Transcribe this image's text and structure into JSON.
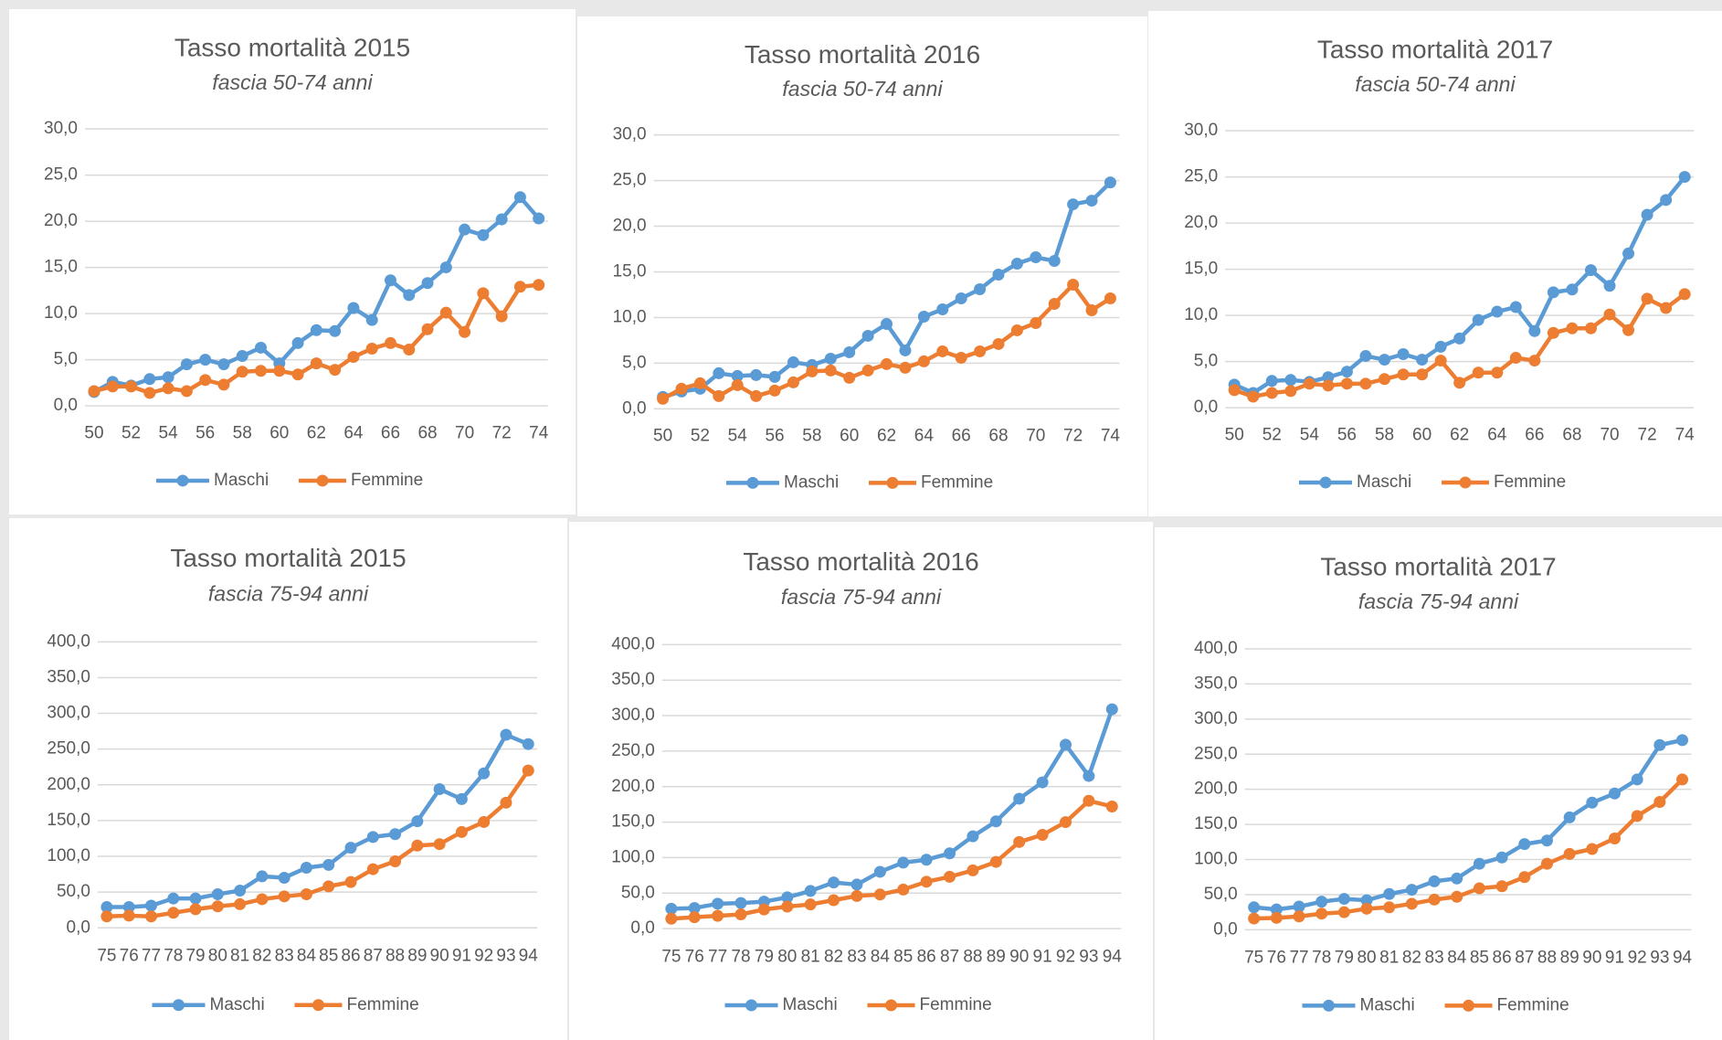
{
  "chart_data": [
    {
      "type": "line",
      "title": "Tasso mortalità 2015",
      "subtitle": "fascia 50-74 anni",
      "x": [
        50,
        51,
        52,
        53,
        54,
        55,
        56,
        57,
        58,
        59,
        60,
        61,
        62,
        63,
        64,
        65,
        66,
        67,
        68,
        69,
        70,
        71,
        72,
        73,
        74
      ],
      "xlim": [
        50,
        74
      ],
      "xticks": [
        50,
        52,
        54,
        56,
        58,
        60,
        62,
        64,
        66,
        68,
        70,
        72,
        74
      ],
      "ylim": [
        0,
        30
      ],
      "yticks": [
        {
          "value": 0,
          "label": "0,0"
        },
        {
          "value": 5,
          "label": "5,0"
        },
        {
          "value": 10,
          "label": "10,0"
        },
        {
          "value": 15,
          "label": "15,0"
        },
        {
          "value": 20,
          "label": "20,0"
        },
        {
          "value": 25,
          "label": "25,0"
        },
        {
          "value": 30,
          "label": "30,0"
        }
      ],
      "grid": true,
      "series": [
        {
          "name": "Maschi",
          "color": "#5b9bd5",
          "values": [
            1.5,
            2.6,
            2.2,
            2.9,
            3.1,
            4.5,
            5.0,
            4.5,
            5.4,
            6.3,
            4.6,
            6.8,
            8.2,
            8.1,
            10.6,
            9.3,
            13.6,
            12.0,
            13.3,
            15.0,
            19.1,
            18.5,
            20.2,
            22.6,
            20.3
          ]
        },
        {
          "name": "Femmine",
          "color": "#ed7d31",
          "values": [
            1.6,
            2.1,
            2.1,
            1.4,
            1.9,
            1.6,
            2.8,
            2.3,
            3.7,
            3.8,
            3.8,
            3.4,
            4.6,
            3.9,
            5.3,
            6.2,
            6.8,
            6.1,
            8.3,
            10.1,
            8.0,
            12.2,
            9.7,
            12.9,
            13.1
          ]
        }
      ]
    },
    {
      "type": "line",
      "title": "Tasso mortalità 2016",
      "subtitle": "fascia 50-74 anni",
      "x": [
        50,
        51,
        52,
        53,
        54,
        55,
        56,
        57,
        58,
        59,
        60,
        61,
        62,
        63,
        64,
        65,
        66,
        67,
        68,
        69,
        70,
        71,
        72,
        73,
        74
      ],
      "xlim": [
        50,
        74
      ],
      "xticks": [
        50,
        52,
        54,
        56,
        58,
        60,
        62,
        64,
        66,
        68,
        70,
        72,
        74
      ],
      "ylim": [
        0,
        30
      ],
      "yticks": [
        {
          "value": 0,
          "label": "0,0"
        },
        {
          "value": 5,
          "label": "5,0"
        },
        {
          "value": 10,
          "label": "10,0"
        },
        {
          "value": 15,
          "label": "15,0"
        },
        {
          "value": 20,
          "label": "20,0"
        },
        {
          "value": 25,
          "label": "25,0"
        },
        {
          "value": 30,
          "label": "30,0"
        }
      ],
      "grid": true,
      "series": [
        {
          "name": "Maschi",
          "color": "#5b9bd5",
          "values": [
            1.3,
            1.9,
            2.2,
            3.9,
            3.6,
            3.7,
            3.5,
            5.1,
            4.8,
            5.5,
            6.2,
            8.0,
            9.3,
            6.4,
            10.1,
            10.9,
            12.1,
            13.1,
            14.7,
            15.9,
            16.6,
            16.2,
            22.4,
            22.8,
            24.8
          ]
        },
        {
          "name": "Femmine",
          "color": "#ed7d31",
          "values": [
            1.1,
            2.2,
            2.8,
            1.4,
            2.6,
            1.4,
            2.0,
            2.9,
            4.1,
            4.2,
            3.4,
            4.2,
            4.9,
            4.5,
            5.2,
            6.3,
            5.6,
            6.3,
            7.1,
            8.6,
            9.4,
            11.5,
            13.6,
            10.8,
            12.1
          ]
        }
      ]
    },
    {
      "type": "line",
      "title": "Tasso mortalità 2017",
      "subtitle": "fascia 50-74 anni",
      "x": [
        50,
        51,
        52,
        53,
        54,
        55,
        56,
        57,
        58,
        59,
        60,
        61,
        62,
        63,
        64,
        65,
        66,
        67,
        68,
        69,
        70,
        71,
        72,
        73,
        74
      ],
      "xlim": [
        50,
        74
      ],
      "xticks": [
        50,
        52,
        54,
        56,
        58,
        60,
        62,
        64,
        66,
        68,
        70,
        72,
        74
      ],
      "ylim": [
        0,
        30
      ],
      "yticks": [
        {
          "value": 0,
          "label": "0,0"
        },
        {
          "value": 5,
          "label": "5,0"
        },
        {
          "value": 10,
          "label": "10,0"
        },
        {
          "value": 15,
          "label": "15,0"
        },
        {
          "value": 20,
          "label": "20,0"
        },
        {
          "value": 25,
          "label": "25,0"
        },
        {
          "value": 30,
          "label": "30,0"
        }
      ],
      "grid": true,
      "series": [
        {
          "name": "Maschi",
          "color": "#5b9bd5",
          "values": [
            2.5,
            1.6,
            2.9,
            3.0,
            2.8,
            3.3,
            3.9,
            5.6,
            5.2,
            5.8,
            5.2,
            6.6,
            7.5,
            9.5,
            10.4,
            10.9,
            8.3,
            12.5,
            12.8,
            14.9,
            13.2,
            16.7,
            20.9,
            22.5,
            25.0
          ]
        },
        {
          "name": "Femmine",
          "color": "#ed7d31",
          "values": [
            1.9,
            1.2,
            1.6,
            1.8,
            2.6,
            2.4,
            2.6,
            2.6,
            3.1,
            3.6,
            3.6,
            5.1,
            2.7,
            3.8,
            3.8,
            5.4,
            5.1,
            8.1,
            8.6,
            8.6,
            10.1,
            8.4,
            11.8,
            10.8,
            12.3
          ]
        }
      ]
    },
    {
      "type": "line",
      "title": "Tasso mortalità 2015",
      "subtitle": "fascia 75-94 anni",
      "x": [
        75,
        76,
        77,
        78,
        79,
        80,
        81,
        82,
        83,
        84,
        85,
        86,
        87,
        88,
        89,
        90,
        91,
        92,
        93,
        94
      ],
      "xlim": [
        75,
        94
      ],
      "xticks": [
        75,
        76,
        77,
        78,
        79,
        80,
        81,
        82,
        83,
        84,
        85,
        86,
        87,
        88,
        89,
        90,
        91,
        92,
        93,
        94
      ],
      "ylim": [
        0,
        400
      ],
      "yticks": [
        {
          "value": 0,
          "label": "0,0"
        },
        {
          "value": 50,
          "label": "50,0"
        },
        {
          "value": 100,
          "label": "100,0"
        },
        {
          "value": 150,
          "label": "150,0"
        },
        {
          "value": 200,
          "label": "200,0"
        },
        {
          "value": 250,
          "label": "250,0"
        },
        {
          "value": 300,
          "label": "300,0"
        },
        {
          "value": 350,
          "label": "350,0"
        },
        {
          "value": 400,
          "label": "400,0"
        }
      ],
      "grid": true,
      "series": [
        {
          "name": "Maschi",
          "color": "#5b9bd5",
          "values": [
            29,
            29,
            31,
            41,
            41,
            47,
            52,
            72,
            70,
            84,
            88,
            112,
            127,
            131,
            149,
            194,
            180,
            216,
            270,
            257
          ]
        },
        {
          "name": "Femmine",
          "color": "#ed7d31",
          "values": [
            16,
            17,
            16,
            21,
            26,
            30,
            33,
            40,
            44,
            47,
            58,
            64,
            82,
            93,
            115,
            117,
            134,
            148,
            175,
            220
          ]
        }
      ]
    },
    {
      "type": "line",
      "title": "Tasso mortalità 2016",
      "subtitle": "fascia 75-94 anni",
      "x": [
        75,
        76,
        77,
        78,
        79,
        80,
        81,
        82,
        83,
        84,
        85,
        86,
        87,
        88,
        89,
        90,
        91,
        92,
        93,
        94
      ],
      "xlim": [
        75,
        94
      ],
      "xticks": [
        75,
        76,
        77,
        78,
        79,
        80,
        81,
        82,
        83,
        84,
        85,
        86,
        87,
        88,
        89,
        90,
        91,
        92,
        93,
        94
      ],
      "ylim": [
        0,
        400
      ],
      "yticks": [
        {
          "value": 0,
          "label": "0,0"
        },
        {
          "value": 50,
          "label": "50,0"
        },
        {
          "value": 100,
          "label": "100,0"
        },
        {
          "value": 150,
          "label": "150,0"
        },
        {
          "value": 200,
          "label": "200,0"
        },
        {
          "value": 250,
          "label": "250,0"
        },
        {
          "value": 300,
          "label": "300,0"
        },
        {
          "value": 350,
          "label": "350,0"
        },
        {
          "value": 400,
          "label": "400,0"
        }
      ],
      "grid": true,
      "series": [
        {
          "name": "Maschi",
          "color": "#5b9bd5",
          "values": [
            28,
            29,
            35,
            36,
            38,
            44,
            53,
            65,
            62,
            80,
            93,
            97,
            106,
            130,
            151,
            183,
            206,
            259,
            215,
            309
          ]
        },
        {
          "name": "Femmine",
          "color": "#ed7d31",
          "values": [
            14,
            16,
            18,
            20,
            27,
            31,
            34,
            40,
            46,
            48,
            55,
            66,
            73,
            82,
            94,
            122,
            132,
            150,
            180,
            172
          ]
        }
      ]
    },
    {
      "type": "line",
      "title": "Tasso mortalità 2017",
      "subtitle": "fascia 75-94 anni",
      "x": [
        75,
        76,
        77,
        78,
        79,
        80,
        81,
        82,
        83,
        84,
        85,
        86,
        87,
        88,
        89,
        90,
        91,
        92,
        93,
        94
      ],
      "xlim": [
        75,
        94
      ],
      "xticks": [
        75,
        76,
        77,
        78,
        79,
        80,
        81,
        82,
        83,
        84,
        85,
        86,
        87,
        88,
        89,
        90,
        91,
        92,
        93,
        94
      ],
      "ylim": [
        0,
        400
      ],
      "yticks": [
        {
          "value": 0,
          "label": "0,0"
        },
        {
          "value": 50,
          "label": "50,0"
        },
        {
          "value": 100,
          "label": "100,0"
        },
        {
          "value": 150,
          "label": "150,0"
        },
        {
          "value": 200,
          "label": "200,0"
        },
        {
          "value": 250,
          "label": "250,0"
        },
        {
          "value": 300,
          "label": "300,0"
        },
        {
          "value": 350,
          "label": "350,0"
        },
        {
          "value": 400,
          "label": "400,0"
        }
      ],
      "grid": true,
      "series": [
        {
          "name": "Maschi",
          "color": "#5b9bd5",
          "values": [
            32,
            29,
            33,
            40,
            44,
            42,
            51,
            57,
            69,
            73,
            94,
            103,
            122,
            127,
            160,
            181,
            194,
            214,
            263,
            270
          ]
        },
        {
          "name": "Femmine",
          "color": "#ed7d31",
          "values": [
            16,
            17,
            19,
            23,
            25,
            30,
            32,
            37,
            43,
            47,
            59,
            62,
            75,
            94,
            108,
            115,
            130,
            162,
            182,
            214
          ]
        }
      ]
    }
  ]
}
